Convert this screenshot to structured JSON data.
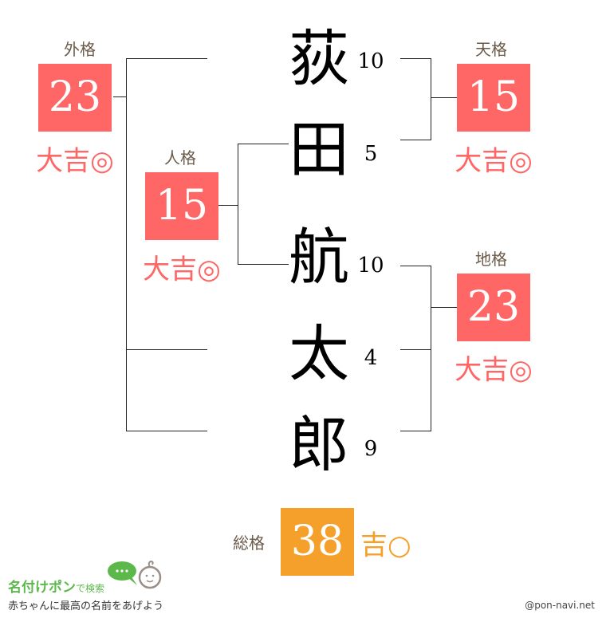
{
  "colors": {
    "lucky": "#ff6666",
    "total": "#f5a02a",
    "label": "#6b5a4a"
  },
  "name": [
    {
      "char": "荻",
      "strokes": "10"
    },
    {
      "char": "田",
      "strokes": "5"
    },
    {
      "char": "航",
      "strokes": "10"
    },
    {
      "char": "太",
      "strokes": "4"
    },
    {
      "char": "郎",
      "strokes": "9"
    }
  ],
  "gaikaku": {
    "label": "外格",
    "value": "23",
    "fortune": "大吉◎"
  },
  "jinkaku": {
    "label": "人格",
    "value": "15",
    "fortune": "大吉◎"
  },
  "tenkaku": {
    "label": "天格",
    "value": "15",
    "fortune": "大吉◎"
  },
  "chikaku": {
    "label": "地格",
    "value": "23",
    "fortune": "大吉◎"
  },
  "soukaku": {
    "label": "総格",
    "value": "38",
    "fortune": "吉○"
  },
  "logo": {
    "title": "名付けポン",
    "suffix": "で検索",
    "tagline": "赤ちゃんに最高の名前をあげよう"
  },
  "credit": "@pon-navi.net"
}
